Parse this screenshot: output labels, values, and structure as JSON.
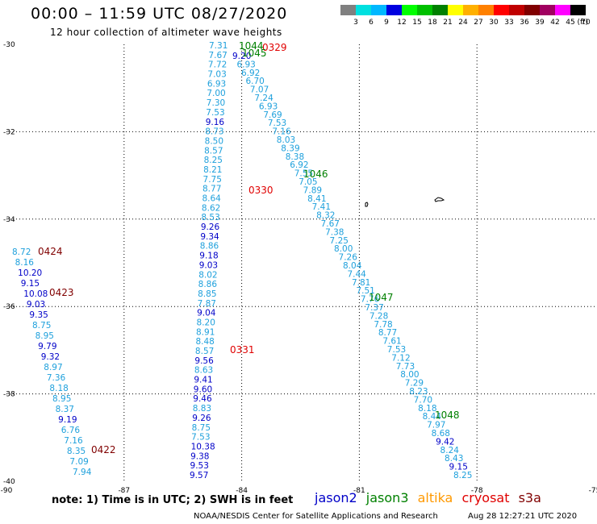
{
  "header": {
    "title": "00:00 – 11:59 UTC 08/27/2020",
    "subtitle": "12 hour collection of altimeter wave heights"
  },
  "legend": {
    "unit": "(ft)",
    "colors": [
      "#808080",
      "#00e0e0",
      "#00b8ff",
      "#0000e0",
      "#00ff00",
      "#00c000",
      "#008000",
      "#ffff00",
      "#ffb000",
      "#ff8000",
      "#ff0000",
      "#c00000",
      "#800000",
      "#a00060",
      "#ff00ff",
      "#000000"
    ],
    "labels": [
      "3",
      "6",
      "9",
      "12",
      "15",
      "18",
      "21",
      "24",
      "27",
      "30",
      "33",
      "36",
      "39",
      "42",
      "45",
      "70"
    ]
  },
  "axes": {
    "lat_labels": [
      "-30",
      "-32",
      "-34",
      "-36",
      "-38",
      "-40"
    ],
    "lon_labels": [
      "-90",
      "-87",
      "-84",
      "-81",
      "-78",
      "-75"
    ]
  },
  "series_colors": {
    "jason2": "#0000c8",
    "jason3": "#008000",
    "altika": "#ff9900",
    "cryosat": "#e00000",
    "s3a": "#800000",
    "light": "#1ea0dc"
  },
  "tracks": {
    "s3a_a": [
      {
        "v": "8.72",
        "c": "light"
      },
      {
        "v": "8.16",
        "c": "light"
      },
      {
        "v": "10.20",
        "c": "jason2"
      },
      {
        "v": "9.15",
        "c": "jason2"
      },
      {
        "v": "10.08",
        "c": "jason2"
      },
      {
        "v": "9.03",
        "c": "jason2"
      },
      {
        "v": "9.35",
        "c": "jason2"
      },
      {
        "v": "8.75",
        "c": "light"
      },
      {
        "v": "8.95",
        "c": "light"
      },
      {
        "v": "9.79",
        "c": "jason2"
      },
      {
        "v": "9.32",
        "c": "jason2"
      },
      {
        "v": "8.97",
        "c": "light"
      },
      {
        "v": "7.36",
        "c": "light"
      },
      {
        "v": "8.18",
        "c": "light"
      },
      {
        "v": "8.95",
        "c": "light"
      },
      {
        "v": "8.37",
        "c": "light"
      },
      {
        "v": "9.19",
        "c": "jason2"
      },
      {
        "v": "6.76",
        "c": "light"
      },
      {
        "v": "7.16",
        "c": "light"
      },
      {
        "v": "8.35",
        "c": "light"
      },
      {
        "v": "7.09",
        "c": "light"
      },
      {
        "v": "7.94",
        "c": "light"
      }
    ],
    "cryosat_a": [
      {
        "v": "7.31",
        "c": "light"
      },
      {
        "v": "7.67",
        "c": "light"
      },
      {
        "v": "7.72",
        "c": "light"
      },
      {
        "v": "7.03",
        "c": "light"
      },
      {
        "v": "6.93",
        "c": "light"
      },
      {
        "v": "7.00",
        "c": "light"
      },
      {
        "v": "7.30",
        "c": "light"
      },
      {
        "v": "7.53",
        "c": "light"
      },
      {
        "v": "9.16",
        "c": "jason2"
      },
      {
        "v": "8.73",
        "c": "light"
      },
      {
        "v": "8.50",
        "c": "light"
      },
      {
        "v": "8.57",
        "c": "light"
      },
      {
        "v": "8.25",
        "c": "light"
      },
      {
        "v": "8.21",
        "c": "light"
      },
      {
        "v": "7.75",
        "c": "light"
      },
      {
        "v": "8.77",
        "c": "light"
      },
      {
        "v": "8.64",
        "c": "light"
      },
      {
        "v": "8.62",
        "c": "light"
      },
      {
        "v": "8.53",
        "c": "light"
      },
      {
        "v": "9.26",
        "c": "jason2"
      },
      {
        "v": "9.34",
        "c": "jason2"
      },
      {
        "v": "8.86",
        "c": "light"
      },
      {
        "v": "9.18",
        "c": "jason2"
      },
      {
        "v": "9.03",
        "c": "jason2"
      },
      {
        "v": "8.02",
        "c": "light"
      },
      {
        "v": "8.86",
        "c": "light"
      },
      {
        "v": "8.85",
        "c": "light"
      },
      {
        "v": "7.87",
        "c": "light"
      },
      {
        "v": "9.04",
        "c": "jason2"
      },
      {
        "v": "8.20",
        "c": "light"
      },
      {
        "v": "8.91",
        "c": "light"
      },
      {
        "v": "8.48",
        "c": "light"
      },
      {
        "v": "8.57",
        "c": "light"
      },
      {
        "v": "9.56",
        "c": "jason2"
      },
      {
        "v": "8.63",
        "c": "light"
      },
      {
        "v": "9.41",
        "c": "jason2"
      },
      {
        "v": "9.60",
        "c": "jason2"
      },
      {
        "v": "9.46",
        "c": "jason2"
      },
      {
        "v": "8.83",
        "c": "light"
      },
      {
        "v": "9.26",
        "c": "jason2"
      },
      {
        "v": "8.75",
        "c": "light"
      },
      {
        "v": "7.53",
        "c": "light"
      },
      {
        "v": "10.38",
        "c": "jason2"
      },
      {
        "v": "9.38",
        "c": "jason2"
      },
      {
        "v": "9.53",
        "c": "jason2"
      },
      {
        "v": "9.57",
        "c": "jason2"
      }
    ],
    "jason3_a": [
      {
        "v": "9.20",
        "c": "jason2"
      },
      {
        "v": "6.93",
        "c": "light"
      },
      {
        "v": "6.92",
        "c": "light"
      },
      {
        "v": "6.70",
        "c": "light"
      },
      {
        "v": "7.07",
        "c": "light"
      },
      {
        "v": "7.24",
        "c": "light"
      },
      {
        "v": "6.93",
        "c": "light"
      },
      {
        "v": "7.69",
        "c": "light"
      },
      {
        "v": "7.53",
        "c": "light"
      },
      {
        "v": "7.16",
        "c": "light"
      },
      {
        "v": "8.03",
        "c": "light"
      },
      {
        "v": "8.39",
        "c": "light"
      },
      {
        "v": "8.38",
        "c": "light"
      },
      {
        "v": "6.92",
        "c": "light"
      },
      {
        "v": "7.55",
        "c": "light"
      },
      {
        "v": "7.05",
        "c": "light"
      },
      {
        "v": "7.89",
        "c": "light"
      },
      {
        "v": "8.41",
        "c": "light"
      },
      {
        "v": "7.41",
        "c": "light"
      },
      {
        "v": "8.32",
        "c": "light"
      },
      {
        "v": "7.67",
        "c": "light"
      },
      {
        "v": "7.38",
        "c": "light"
      },
      {
        "v": "7.25",
        "c": "light"
      },
      {
        "v": "8.00",
        "c": "light"
      },
      {
        "v": "7.26",
        "c": "light"
      },
      {
        "v": "8.04",
        "c": "light"
      },
      {
        "v": "7.44",
        "c": "light"
      },
      {
        "v": "7.81",
        "c": "light"
      },
      {
        "v": "7.51",
        "c": "light"
      },
      {
        "v": "7.76",
        "c": "light"
      },
      {
        "v": "7.37",
        "c": "light"
      },
      {
        "v": "7.28",
        "c": "light"
      },
      {
        "v": "7.78",
        "c": "light"
      },
      {
        "v": "8.77",
        "c": "light"
      },
      {
        "v": "7.61",
        "c": "light"
      },
      {
        "v": "7.53",
        "c": "light"
      },
      {
        "v": "7.12",
        "c": "light"
      },
      {
        "v": "7.73",
        "c": "light"
      },
      {
        "v": "8.00",
        "c": "light"
      },
      {
        "v": "7.29",
        "c": "light"
      },
      {
        "v": "8.23",
        "c": "light"
      },
      {
        "v": "7.70",
        "c": "light"
      },
      {
        "v": "8.18",
        "c": "light"
      },
      {
        "v": "8.44",
        "c": "light"
      },
      {
        "v": "7.97",
        "c": "light"
      },
      {
        "v": "8.68",
        "c": "light"
      },
      {
        "v": "9.42",
        "c": "jason2"
      },
      {
        "v": "8.24",
        "c": "light"
      },
      {
        "v": "8.43",
        "c": "light"
      },
      {
        "v": "9.15",
        "c": "jason2"
      },
      {
        "v": "8.25",
        "c": "light"
      }
    ]
  },
  "time_labels": [
    {
      "t": "0424",
      "c": "s3a"
    },
    {
      "t": "0423",
      "c": "s3a"
    },
    {
      "t": "0422",
      "c": "s3a"
    },
    {
      "t": "0329",
      "c": "cryosat"
    },
    {
      "t": "0330",
      "c": "cryosat"
    },
    {
      "t": "0331",
      "c": "cryosat"
    },
    {
      "t": "1044",
      "c": "jason3"
    },
    {
      "t": "1045",
      "c": "jason3"
    },
    {
      "t": "1046",
      "c": "jason3"
    },
    {
      "t": "1047",
      "c": "jason3"
    },
    {
      "t": "1048",
      "c": "jason3"
    }
  ],
  "footer": {
    "note": "note: 1) Time is in UTC; 2) SWH is in feet",
    "sat_jason2": "jason2",
    "sat_jason3": "jason3",
    "sat_altika": "altika",
    "sat_cryosat": "cryosat",
    "sat_s3a": "s3a",
    "credit": "NOAA/NESDIS Center for Satellite Applications and Research",
    "timestamp": "Aug 28 12:27:21 UTC 2020"
  }
}
